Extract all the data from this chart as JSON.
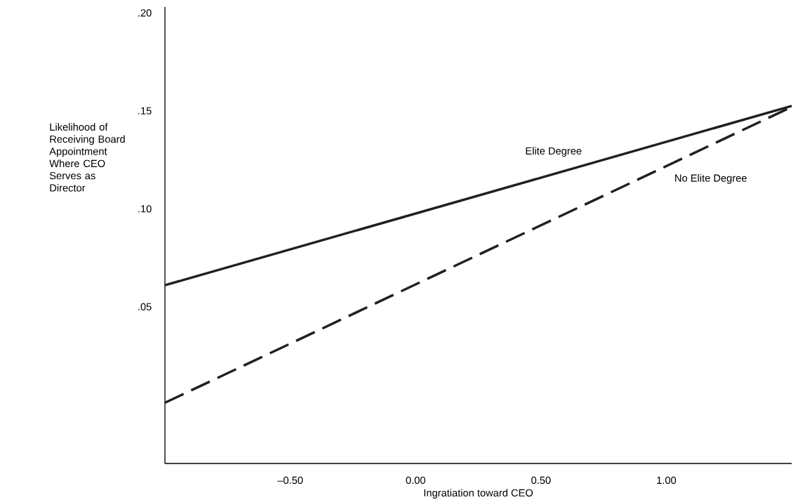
{
  "chart_data": {
    "type": "line",
    "xlabel": "Ingratiation toward CEO",
    "ylabel": "Likelihood of Receiving Board Appointment Where CEO Serves as Director",
    "xlim": [
      -1.0,
      1.5
    ],
    "ylim": [
      -0.03,
      0.203
    ],
    "xticks": [
      {
        "value": -0.5,
        "label": "–0.50"
      },
      {
        "value": 0,
        "label": "0.00"
      },
      {
        "value": 0.5,
        "label": "0.50"
      },
      {
        "value": 1.0,
        "label": "1.00"
      }
    ],
    "yticks": [
      {
        "value": 0.05,
        "label": ".05"
      },
      {
        "value": 0.1,
        "label": ".10"
      },
      {
        "value": 0.15,
        "label": ".15"
      },
      {
        "value": 0.2,
        "label": ".20"
      }
    ],
    "x": [
      -1.0,
      1.5
    ],
    "grid": false,
    "legend": false,
    "marker": "none",
    "series": [
      {
        "name": "Elite Degree",
        "color": "#231f20",
        "values": [
          0.061,
          0.1525
        ],
        "line_style": "solid"
      },
      {
        "name": "No Elite Degree",
        "color": "#231f20",
        "values": [
          0.001,
          0.152
        ],
        "line_style": "dashed"
      }
    ]
  }
}
